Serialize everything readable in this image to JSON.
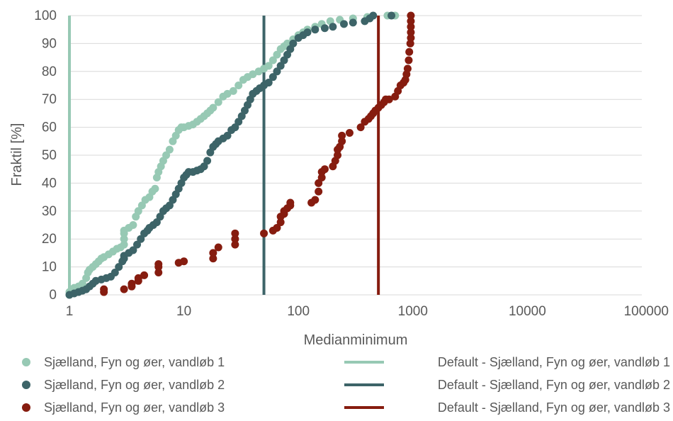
{
  "chart_data": {
    "type": "scatter",
    "title": "",
    "xlabel": "Medianminimum",
    "ylabel": "Fraktil [%]",
    "xscale": "log",
    "xlim": [
      1,
      100000
    ],
    "ylim": [
      0,
      100
    ],
    "x_ticks": [
      "1",
      "10",
      "100",
      "1000",
      "10000",
      "100000"
    ],
    "y_ticks": [
      "0",
      "10",
      "20",
      "30",
      "40",
      "50",
      "60",
      "70",
      "80",
      "90",
      "100"
    ],
    "grid": "horizontal",
    "legend_position": "bottom",
    "series": [
      {
        "name": "Sjælland, Fyn og øer, vandløb 1",
        "kind": "points",
        "color": "#97c9b4",
        "points": [
          [
            1,
            0
          ],
          [
            1,
            1
          ],
          [
            1.05,
            2
          ],
          [
            1.1,
            2.5
          ],
          [
            1.2,
            3
          ],
          [
            1.3,
            4
          ],
          [
            1.4,
            6
          ],
          [
            1.45,
            8
          ],
          [
            1.5,
            9
          ],
          [
            1.6,
            10
          ],
          [
            1.7,
            11
          ],
          [
            1.8,
            12
          ],
          [
            1.9,
            13
          ],
          [
            2.0,
            13.5
          ],
          [
            2.2,
            14.5
          ],
          [
            2.4,
            15.5
          ],
          [
            2.6,
            16.5
          ],
          [
            2.8,
            17
          ],
          [
            3,
            18
          ],
          [
            3,
            20
          ],
          [
            3,
            22
          ],
          [
            3,
            23
          ],
          [
            3.3,
            24
          ],
          [
            3.6,
            25
          ],
          [
            3.8,
            28
          ],
          [
            4,
            30
          ],
          [
            4.3,
            32
          ],
          [
            4.6,
            34
          ],
          [
            5,
            35
          ],
          [
            5.3,
            37
          ],
          [
            5.6,
            38
          ],
          [
            5.8,
            42
          ],
          [
            6,
            44
          ],
          [
            6.3,
            46
          ],
          [
            6.6,
            48
          ],
          [
            7,
            50
          ],
          [
            7.5,
            52
          ],
          [
            8,
            55
          ],
          [
            8.5,
            57
          ],
          [
            9,
            59
          ],
          [
            9.5,
            60
          ],
          [
            10,
            60
          ],
          [
            11,
            60.5
          ],
          [
            12,
            61
          ],
          [
            13,
            62
          ],
          [
            14,
            63
          ],
          [
            15,
            64
          ],
          [
            16,
            65
          ],
          [
            17,
            66
          ],
          [
            18,
            67
          ],
          [
            20,
            69
          ],
          [
            22,
            71
          ],
          [
            24,
            72
          ],
          [
            27,
            73
          ],
          [
            30,
            75
          ],
          [
            33,
            77
          ],
          [
            36,
            78
          ],
          [
            40,
            79
          ],
          [
            45,
            80
          ],
          [
            50,
            81
          ],
          [
            55,
            82
          ],
          [
            60,
            84
          ],
          [
            65,
            86
          ],
          [
            70,
            88
          ],
          [
            75,
            89
          ],
          [
            80,
            90
          ],
          [
            90,
            91.5
          ],
          [
            100,
            93
          ],
          [
            110,
            94
          ],
          [
            120,
            95
          ],
          [
            140,
            96
          ],
          [
            160,
            97
          ],
          [
            190,
            98
          ],
          [
            230,
            98.5
          ],
          [
            300,
            99
          ],
          [
            400,
            99.5
          ],
          [
            600,
            100
          ],
          [
            700,
            100
          ]
        ]
      },
      {
        "name": "Sjælland, Fyn og øer, vandløb 2",
        "kind": "points",
        "color": "#3d6468",
        "points": [
          [
            1,
            0
          ],
          [
            1.1,
            0.5
          ],
          [
            1.2,
            1
          ],
          [
            1.3,
            1.5
          ],
          [
            1.4,
            2
          ],
          [
            1.5,
            3
          ],
          [
            1.6,
            4
          ],
          [
            1.7,
            5
          ],
          [
            1.9,
            5.5
          ],
          [
            2.1,
            6
          ],
          [
            2.3,
            6.5
          ],
          [
            2.5,
            8
          ],
          [
            2.7,
            10
          ],
          [
            2.9,
            12
          ],
          [
            3,
            13
          ],
          [
            3,
            14
          ],
          [
            3.3,
            15
          ],
          [
            3.6,
            16
          ],
          [
            3.9,
            18
          ],
          [
            4.2,
            20
          ],
          [
            4.5,
            22
          ],
          [
            4.8,
            23
          ],
          [
            5,
            24
          ],
          [
            5.4,
            25
          ],
          [
            5.8,
            26
          ],
          [
            6.2,
            28
          ],
          [
            6.6,
            30
          ],
          [
            7,
            31
          ],
          [
            7.5,
            32
          ],
          [
            8,
            34
          ],
          [
            8.5,
            36
          ],
          [
            9,
            38
          ],
          [
            9.5,
            40
          ],
          [
            10,
            42
          ],
          [
            10.5,
            43
          ],
          [
            11,
            44
          ],
          [
            12,
            44
          ],
          [
            13,
            44.5
          ],
          [
            14,
            45
          ],
          [
            15,
            46
          ],
          [
            16,
            48
          ],
          [
            17,
            51
          ],
          [
            18,
            53
          ],
          [
            19,
            54
          ],
          [
            20,
            55
          ],
          [
            22,
            56
          ],
          [
            24,
            57
          ],
          [
            26,
            59
          ],
          [
            28,
            60
          ],
          [
            30,
            62
          ],
          [
            32,
            64
          ],
          [
            34,
            66
          ],
          [
            36,
            68
          ],
          [
            38,
            70
          ],
          [
            40,
            72
          ],
          [
            43,
            73
          ],
          [
            46,
            74
          ],
          [
            50,
            75
          ],
          [
            55,
            76
          ],
          [
            60,
            78
          ],
          [
            65,
            80
          ],
          [
            70,
            82
          ],
          [
            75,
            84
          ],
          [
            80,
            86
          ],
          [
            85,
            88
          ],
          [
            90,
            90
          ],
          [
            100,
            92
          ],
          [
            110,
            93
          ],
          [
            120,
            94
          ],
          [
            140,
            95
          ],
          [
            170,
            95.5
          ],
          [
            200,
            96
          ],
          [
            250,
            97
          ],
          [
            300,
            97.5
          ],
          [
            380,
            98
          ],
          [
            420,
            99
          ],
          [
            450,
            100
          ],
          [
            650,
            100
          ]
        ]
      },
      {
        "name": "Sjælland, Fyn og øer, vandløb 3",
        "kind": "points",
        "color": "#861c0f",
        "points": [
          [
            2,
            1
          ],
          [
            2,
            2
          ],
          [
            3,
            2
          ],
          [
            3.5,
            3
          ],
          [
            3.5,
            4
          ],
          [
            4,
            5
          ],
          [
            4,
            6
          ],
          [
            4.5,
            7
          ],
          [
            6,
            8
          ],
          [
            6,
            10
          ],
          [
            6,
            11
          ],
          [
            9,
            11.5
          ],
          [
            10,
            12
          ],
          [
            18,
            13
          ],
          [
            18,
            15
          ],
          [
            20,
            17
          ],
          [
            28,
            18
          ],
          [
            28,
            20
          ],
          [
            28,
            22
          ],
          [
            50,
            22
          ],
          [
            60,
            23
          ],
          [
            65,
            24
          ],
          [
            70,
            26
          ],
          [
            70,
            28
          ],
          [
            75,
            29
          ],
          [
            75,
            30
          ],
          [
            80,
            31
          ],
          [
            85,
            32
          ],
          [
            85,
            33
          ],
          [
            130,
            33
          ],
          [
            140,
            34
          ],
          [
            150,
            37
          ],
          [
            150,
            40
          ],
          [
            160,
            42
          ],
          [
            160,
            44
          ],
          [
            170,
            45
          ],
          [
            200,
            46
          ],
          [
            210,
            48
          ],
          [
            220,
            50
          ],
          [
            220,
            52
          ],
          [
            230,
            53
          ],
          [
            240,
            55
          ],
          [
            240,
            57
          ],
          [
            280,
            58
          ],
          [
            350,
            60
          ],
          [
            380,
            62
          ],
          [
            410,
            63
          ],
          [
            430,
            64
          ],
          [
            450,
            65
          ],
          [
            470,
            66
          ],
          [
            500,
            67
          ],
          [
            530,
            68
          ],
          [
            560,
            69
          ],
          [
            580,
            70
          ],
          [
            620,
            70
          ],
          [
            700,
            71
          ],
          [
            740,
            73
          ],
          [
            780,
            75
          ],
          [
            830,
            76
          ],
          [
            860,
            77
          ],
          [
            880,
            79
          ],
          [
            900,
            81
          ],
          [
            920,
            84
          ],
          [
            930,
            87
          ],
          [
            950,
            90
          ],
          [
            960,
            92
          ],
          [
            960,
            94
          ],
          [
            960,
            96
          ],
          [
            960,
            98
          ],
          [
            960,
            100
          ]
        ]
      },
      {
        "name": "Default - Sjælland, Fyn og øer, vandløb 1",
        "kind": "vline",
        "color": "#97c9b4",
        "x": 1
      },
      {
        "name": "Default - Sjælland, Fyn og øer, vandløb 2",
        "kind": "vline",
        "color": "#3d6468",
        "x": 50
      },
      {
        "name": "Default - Sjælland, Fyn og øer, vandløb 3",
        "kind": "vline",
        "color": "#861c0f",
        "x": 500
      }
    ]
  }
}
